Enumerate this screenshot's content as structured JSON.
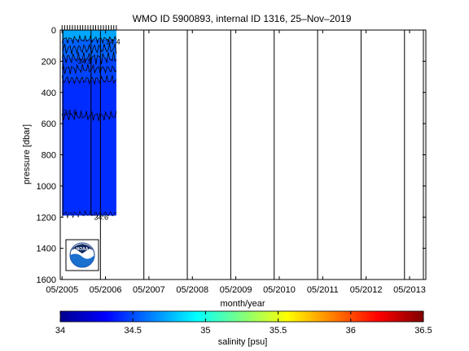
{
  "chart_data": {
    "type": "heatmap",
    "title": "WMO ID 5900893, internal ID 1316, 25–Nov–2019",
    "xlabel": "month/year",
    "ylabel": "pressure [dbar]",
    "x_ticks": [
      "05/2005",
      "05/2006",
      "05/2007",
      "05/2008",
      "05/2009",
      "05/2010",
      "05/2011",
      "05/2012",
      "05/2013"
    ],
    "x_range_months_from_tick0": [
      -0.5,
      100.5
    ],
    "y_ticks": [
      0,
      200,
      400,
      600,
      800,
      1000,
      1200,
      1400,
      1600
    ],
    "ylim": [
      0,
      1600
    ],
    "y_reversed": true,
    "colorbar": {
      "label": "salinity [psu]",
      "ticks": [
        "34",
        "34.5",
        "35",
        "35.5",
        "36",
        "36.5"
      ],
      "range": [
        34,
        36.5
      ],
      "colormap": "jet"
    },
    "contour_labels": [
      "34.4",
      "34.5",
      "34.6",
      "34.6"
    ],
    "data_coverage": {
      "start": "05/2005",
      "end": "08/2006",
      "max_pressure_dbar": 1190
    },
    "salinity_layers": [
      {
        "p_top": 0,
        "p_bottom": 60,
        "salinity": 34.72
      },
      {
        "p_top": 60,
        "p_bottom": 180,
        "salinity": 34.55
      },
      {
        "p_top": 180,
        "p_bottom": 320,
        "salinity": 34.48
      },
      {
        "p_top": 320,
        "p_bottom": 1190,
        "salinity": 34.42
      }
    ],
    "logo": "NOAA"
  },
  "colors": {
    "axes": "#000000",
    "background": "#ffffff",
    "profile_line": "#000000"
  }
}
